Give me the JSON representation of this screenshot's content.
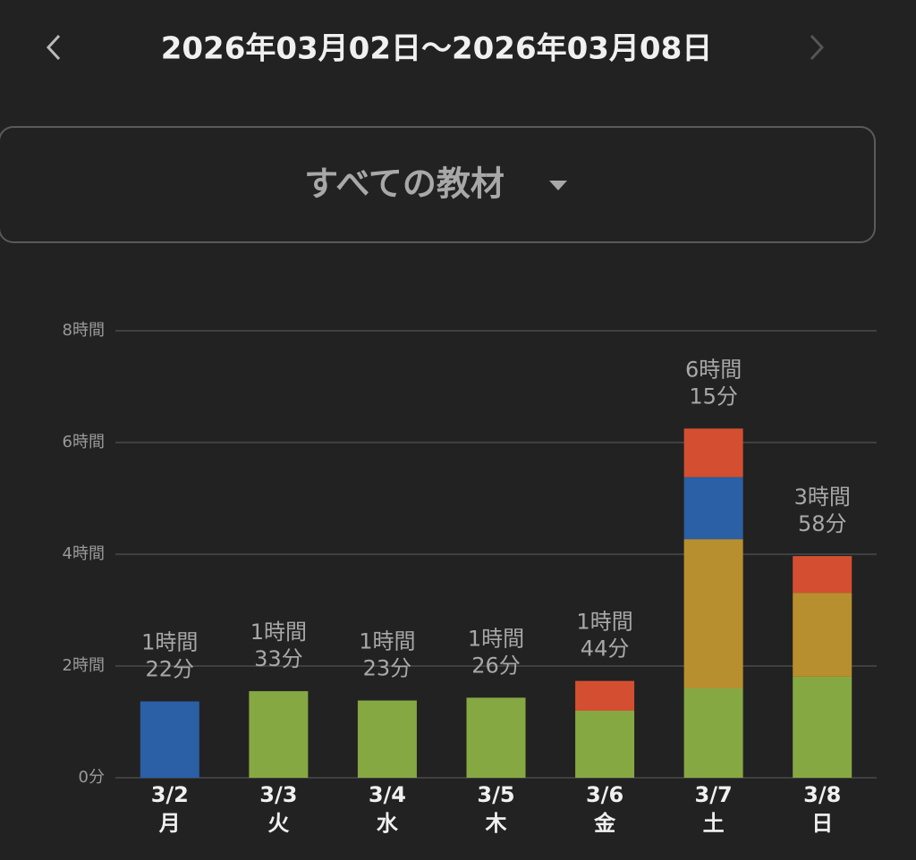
{
  "header": {
    "title": "2026年03月02日〜2026年03月08日"
  },
  "filter": {
    "label": "すべての教材"
  },
  "chart_data": {
    "type": "stacked_bar",
    "categories": [
      "3/2",
      "3/3",
      "3/4",
      "3/5",
      "3/6",
      "3/7",
      "3/8"
    ],
    "weekdays": [
      "月",
      "火",
      "水",
      "木",
      "金",
      "土",
      "日"
    ],
    "series": [
      {
        "color": "#86a843",
        "values": [
          null,
          1.55,
          1.383,
          1.433,
          1.2,
          1.6,
          1.81
        ]
      },
      {
        "color": "#b88f2e",
        "values": [
          null,
          null,
          null,
          null,
          null,
          2.67,
          1.5
        ]
      },
      {
        "color": "#2b5fa6",
        "values": [
          1.367,
          null,
          null,
          null,
          null,
          1.11,
          null
        ]
      },
      {
        "color": "#d44f31",
        "values": [
          null,
          null,
          null,
          null,
          0.533,
          0.87,
          0.657
        ]
      }
    ],
    "totals": [
      1.367,
      1.55,
      1.383,
      1.433,
      1.733,
      6.25,
      3.967
    ],
    "total_labels": [
      [
        "1時間",
        "22分"
      ],
      [
        "1時間",
        "33分"
      ],
      [
        "1時間",
        "23分"
      ],
      [
        "1時間",
        "26分"
      ],
      [
        "1時間",
        "44分"
      ],
      [
        "6時間",
        "15分"
      ],
      [
        "3時間",
        "58分"
      ]
    ],
    "ylim": [
      0,
      8
    ],
    "yticks": [
      {
        "value": 0,
        "label": "0分"
      },
      {
        "value": 2,
        "label": "2時間"
      },
      {
        "value": 4,
        "label": "4時間"
      },
      {
        "value": 6,
        "label": "6時間"
      },
      {
        "value": 8,
        "label": "8時間"
      }
    ],
    "grid": true
  }
}
